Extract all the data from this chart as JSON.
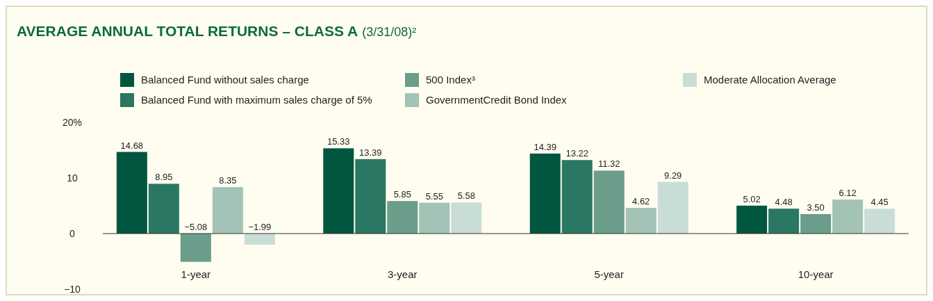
{
  "chart_data": {
    "type": "bar",
    "title": "AVERAGE ANNUAL TOTAL RETURNS – CLASS A",
    "subtitle": "(3/31/08)²",
    "categories": [
      "1-year",
      "3-year",
      "5-year",
      "10-year"
    ],
    "series": [
      {
        "name": "Balanced Fund without sales charge",
        "color": "#00563f",
        "values": [
          14.68,
          15.33,
          14.39,
          5.02
        ],
        "value_labels": [
          "14.68",
          "15.33",
          "14.39",
          "5.02"
        ]
      },
      {
        "name": "Balanced Fund with maximum sales charge of 5%",
        "color": "#2a7763",
        "values": [
          8.95,
          13.39,
          13.22,
          4.48
        ],
        "value_labels": [
          "8.95",
          "13.39",
          "13.22",
          "4.48"
        ]
      },
      {
        "name": "500 Index³",
        "color": "#6b9d8b",
        "values": [
          -5.08,
          5.85,
          11.32,
          3.5
        ],
        "value_labels": [
          "−5.08",
          "5.85",
          "11.32",
          "3.50"
        ]
      },
      {
        "name": "GovernmentCredit Bond Index",
        "color": "#a2c3b5",
        "values": [
          8.35,
          5.55,
          4.62,
          6.12
        ],
        "value_labels": [
          "8.35",
          "5.55",
          "4.62",
          "6.12"
        ]
      },
      {
        "name": "Moderate Allocation Average",
        "color": "#c8ddd5",
        "values": [
          -1.99,
          5.58,
          9.29,
          4.45
        ],
        "value_labels": [
          "−1.99",
          "5.58",
          "9.29",
          "4.45"
        ]
      }
    ],
    "ylim": [
      -10,
      20
    ],
    "yticks": [
      {
        "value": 20,
        "label": "20%"
      },
      10,
      0,
      {
        "value": -10,
        "label": "−10"
      }
    ],
    "legend": "top"
  }
}
